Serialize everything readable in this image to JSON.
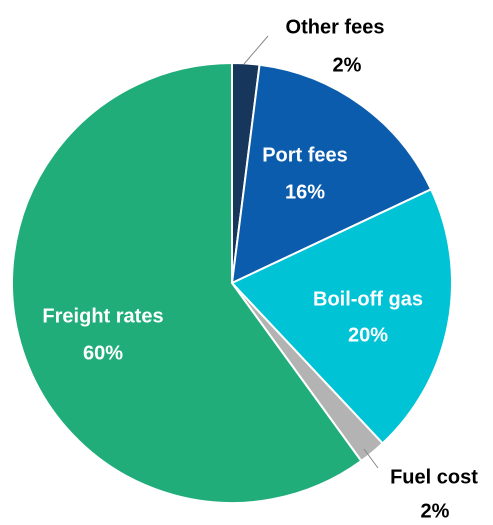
{
  "chart_data": {
    "type": "pie",
    "categories": [
      "Other fees",
      "Port fees",
      "Boil-off gas",
      "Fuel cost",
      "Freight rates"
    ],
    "values": [
      2,
      16,
      20,
      2,
      60
    ],
    "value_labels": [
      "2%",
      "16%",
      "20%",
      "2%",
      "60%"
    ],
    "colors": [
      "#16365c",
      "#0b5cad",
      "#00c3d6",
      "#b3b3b3",
      "#20ad7a"
    ]
  }
}
